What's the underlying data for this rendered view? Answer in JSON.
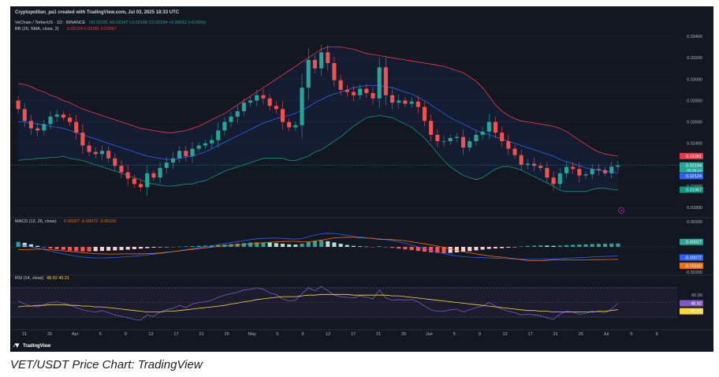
{
  "header": {
    "created_by": "Cryptopolitan_pa1 created with TradingView.com, Jul 03, 2025 18:33 UTC",
    "symbol": "VeChain / TetherUS · 1D · BINANCE",
    "ohlc": "O0.02181 H0.02247 L0.02168 C0.02194 +0.00012 (+0.55%)",
    "bb_label": "BB (20, SMA, close, 2)",
    "bb_values": "0.02124  0.02281  0.01967",
    "macd_label": "MACD (12, 26, close)",
    "macd_values": "0.00027  -0.00072  -0.00100",
    "rsi_label": "RSI (14, close)",
    "rsi_values": "48.92  40.21"
  },
  "logo_text": "TradingView",
  "caption": "VET/USDT Price Chart: TradingView",
  "colors": {
    "background": "#131722",
    "up": "#26a69a",
    "down": "#ef5350",
    "bb_upper": "#f23645",
    "bb_basis": "#2962ff",
    "bb_lower": "#089981",
    "macd_line": "#2962ff",
    "signal_line": "#ff6d00",
    "rsi_line": "#7e57c2",
    "rsi_ma": "#fdd835"
  },
  "price_axis": {
    "ticks": [
      "0.03400",
      "0.03200",
      "0.03000",
      "0.02800",
      "0.02600",
      "0.02400",
      "0.02000",
      "0.01800"
    ],
    "tags": {
      "bb_upper": "0.02281",
      "last_price": "0.02194",
      "countdown": "05:26:14",
      "bb_basis": "0.02124",
      "bb_lower": "0.01967"
    }
  },
  "macd_axis": {
    "ticks": [
      "0.00200",
      "-0.00200"
    ],
    "tags": [
      "0.00027",
      "-0.00072",
      "-0.00100"
    ]
  },
  "rsi_axis": {
    "ticks": [
      "60.00"
    ],
    "tags": [
      "48.92",
      "40.21"
    ]
  },
  "chart_data": {
    "type": "candlestick",
    "symbol": "VeChain / TetherUS",
    "timeframe": "1D",
    "exchange": "BINANCE",
    "yrange": [
      0.0172,
      0.0343
    ],
    "x_tick_labels": [
      "21",
      "25",
      "Apr",
      "5",
      "9",
      "13",
      "17",
      "21",
      "25",
      "May",
      "5",
      "9",
      "13",
      "17",
      "21",
      "25",
      "Jun",
      "5",
      "9",
      "13",
      "17",
      "21",
      "25",
      "Jul",
      "5",
      "9"
    ],
    "last_ohlc": {
      "open": 0.02181,
      "high": 0.02247,
      "low": 0.02168,
      "close": 0.02194,
      "change": 0.00012,
      "change_pct": 0.55
    },
    "closes": [
      0.0272,
      0.0261,
      0.0254,
      0.0252,
      0.0258,
      0.0265,
      0.0267,
      0.0264,
      0.026,
      0.025,
      0.0238,
      0.0232,
      0.023,
      0.0233,
      0.0226,
      0.0219,
      0.0213,
      0.0207,
      0.0202,
      0.0199,
      0.0212,
      0.0208,
      0.0217,
      0.0222,
      0.0226,
      0.0233,
      0.0228,
      0.0235,
      0.0238,
      0.024,
      0.0243,
      0.0252,
      0.026,
      0.0265,
      0.027,
      0.0278,
      0.028,
      0.0285,
      0.0282,
      0.0275,
      0.0272,
      0.026,
      0.0255,
      0.0257,
      0.0292,
      0.0318,
      0.031,
      0.0325,
      0.0315,
      0.0299,
      0.029,
      0.0288,
      0.0285,
      0.0291,
      0.0287,
      0.0282,
      0.0311,
      0.0285,
      0.0278,
      0.028,
      0.0277,
      0.0279,
      0.0274,
      0.0261,
      0.0248,
      0.0242,
      0.0242,
      0.0245,
      0.0246,
      0.0236,
      0.0242,
      0.0248,
      0.0251,
      0.026,
      0.025,
      0.0242,
      0.0235,
      0.0229,
      0.022,
      0.0221,
      0.0219,
      0.0217,
      0.0208,
      0.0202,
      0.0212,
      0.0218,
      0.0216,
      0.021,
      0.0211,
      0.0216,
      0.0215,
      0.0212,
      0.02182,
      0.02194
    ],
    "opens": [
      0.028,
      0.0272,
      0.0261,
      0.0254,
      0.0252,
      0.0258,
      0.0265,
      0.0267,
      0.0264,
      0.026,
      0.025,
      0.0238,
      0.0232,
      0.023,
      0.0233,
      0.0226,
      0.0219,
      0.0213,
      0.0207,
      0.0202,
      0.0199,
      0.0212,
      0.0208,
      0.0217,
      0.0222,
      0.0226,
      0.0233,
      0.0228,
      0.0235,
      0.0238,
      0.024,
      0.0243,
      0.0252,
      0.026,
      0.0265,
      0.027,
      0.0278,
      0.028,
      0.0285,
      0.0282,
      0.0275,
      0.0272,
      0.026,
      0.0255,
      0.0257,
      0.0292,
      0.0318,
      0.031,
      0.0325,
      0.0315,
      0.0299,
      0.029,
      0.0288,
      0.0285,
      0.0291,
      0.0287,
      0.0282,
      0.0311,
      0.0285,
      0.0278,
      0.028,
      0.0277,
      0.0279,
      0.0274,
      0.0261,
      0.0248,
      0.0242,
      0.0242,
      0.0245,
      0.0246,
      0.0236,
      0.0242,
      0.0248,
      0.0251,
      0.026,
      0.025,
      0.0242,
      0.0235,
      0.0229,
      0.022,
      0.0221,
      0.0219,
      0.0217,
      0.0208,
      0.0202,
      0.0212,
      0.0218,
      0.0216,
      0.021,
      0.0211,
      0.0216,
      0.0215,
      0.0212,
      0.02181
    ],
    "bb_upper": [
      0.0296,
      0.0295,
      0.0293,
      0.029,
      0.0288,
      0.0285,
      0.0283,
      0.028,
      0.0278,
      0.0275,
      0.0272,
      0.027,
      0.0268,
      0.0266,
      0.0264,
      0.0262,
      0.026,
      0.0258,
      0.0256,
      0.0254,
      0.0253,
      0.0252,
      0.0251,
      0.025,
      0.025,
      0.0251,
      0.0252,
      0.0254,
      0.0256,
      0.0259,
      0.0262,
      0.0265,
      0.0268,
      0.0272,
      0.0276,
      0.028,
      0.0284,
      0.0288,
      0.0292,
      0.0296,
      0.03,
      0.0304,
      0.0308,
      0.0312,
      0.0316,
      0.032,
      0.0324,
      0.0328,
      0.033,
      0.033,
      0.033,
      0.0329,
      0.0328,
      0.0326,
      0.0324,
      0.0323,
      0.0322,
      0.0321,
      0.032,
      0.0319,
      0.0318,
      0.0317,
      0.0316,
      0.0315,
      0.0314,
      0.0313,
      0.0312,
      0.031,
      0.0308,
      0.0306,
      0.0302,
      0.0298,
      0.0292,
      0.0284,
      0.0276,
      0.027,
      0.0266,
      0.0263,
      0.0261,
      0.026,
      0.0259,
      0.0258,
      0.0257,
      0.0256,
      0.0254,
      0.0251,
      0.0247,
      0.0243,
      0.0239,
      0.0235,
      0.0232,
      0.023,
      0.0229,
      0.02281
    ],
    "bb_basis": [
      0.026,
      0.026,
      0.0259,
      0.0258,
      0.0257,
      0.0256,
      0.0255,
      0.0254,
      0.0252,
      0.025,
      0.0248,
      0.0246,
      0.0244,
      0.0242,
      0.024,
      0.0238,
      0.0236,
      0.0234,
      0.0232,
      0.023,
      0.0228,
      0.0227,
      0.0226,
      0.0225,
      0.0225,
      0.0226,
      0.0227,
      0.0228,
      0.023,
      0.0232,
      0.0235,
      0.0238,
      0.0241,
      0.0244,
      0.0247,
      0.025,
      0.0253,
      0.0256,
      0.0259,
      0.0261,
      0.0263,
      0.0265,
      0.0266,
      0.0268,
      0.0271,
      0.0274,
      0.0278,
      0.0281,
      0.0284,
      0.0286,
      0.0288,
      0.029,
      0.0292,
      0.0293,
      0.0294,
      0.0294,
      0.0294,
      0.0293,
      0.0292,
      0.029,
      0.0288,
      0.0286,
      0.0283,
      0.028,
      0.0276,
      0.0272,
      0.0268,
      0.0264,
      0.0261,
      0.0258,
      0.0255,
      0.0252,
      0.025,
      0.0248,
      0.0246,
      0.0244,
      0.0242,
      0.024,
      0.0238,
      0.0236,
      0.0234,
      0.0232,
      0.023,
      0.0228,
      0.0225,
      0.0223,
      0.0221,
      0.0219,
      0.0217,
      0.0216,
      0.0215,
      0.0214,
      0.0213,
      0.02124
    ],
    "bb_lower": [
      0.0224,
      0.0225,
      0.0225,
      0.0226,
      0.0226,
      0.0227,
      0.0227,
      0.0228,
      0.0226,
      0.0225,
      0.0224,
      0.0222,
      0.022,
      0.0218,
      0.0216,
      0.0214,
      0.0212,
      0.021,
      0.0208,
      0.0206,
      0.0203,
      0.0202,
      0.0201,
      0.02,
      0.02,
      0.0201,
      0.0202,
      0.0202,
      0.0204,
      0.0205,
      0.0208,
      0.0211,
      0.0214,
      0.0216,
      0.0218,
      0.022,
      0.0222,
      0.0224,
      0.0226,
      0.0226,
      0.0226,
      0.0226,
      0.0224,
      0.0224,
      0.0226,
      0.0228,
      0.0232,
      0.0234,
      0.0238,
      0.0242,
      0.0246,
      0.0251,
      0.0256,
      0.026,
      0.0264,
      0.0265,
      0.0266,
      0.0265,
      0.0264,
      0.0261,
      0.0258,
      0.0255,
      0.025,
      0.0245,
      0.0238,
      0.0231,
      0.0224,
      0.0218,
      0.0214,
      0.021,
      0.0208,
      0.0206,
      0.0208,
      0.0212,
      0.0216,
      0.0218,
      0.0218,
      0.0217,
      0.0215,
      0.0212,
      0.0209,
      0.0206,
      0.0203,
      0.02,
      0.0196,
      0.0195,
      0.0195,
      0.0195,
      0.0195,
      0.0197,
      0.0198,
      0.0198,
      0.0197,
      0.01967
    ],
    "macd_hist": [
      0.0004,
      0.00032,
      0.0002,
      8e-05,
      -4e-05,
      -0.00012,
      -0.00018,
      -0.00024,
      -0.0003,
      -0.00034,
      -0.00036,
      -0.00036,
      -0.00034,
      -0.00032,
      -0.0003,
      -0.00028,
      -0.00026,
      -0.00022,
      -0.00018,
      -0.00014,
      -0.0001,
      -6e-05,
      -4e-05,
      -2e-05,
      0.0,
      2e-05,
      4e-05,
      6e-05,
      8e-05,
      0.0001,
      0.00012,
      0.00015,
      0.00018,
      0.00022,
      0.00026,
      0.0003,
      0.00034,
      0.00036,
      0.00036,
      0.00034,
      0.0003,
      0.00025,
      0.0002,
      0.00018,
      0.00025,
      0.0004,
      0.00048,
      0.0005,
      0.00045,
      0.00035,
      0.00025,
      0.00015,
      8e-05,
      5e-05,
      2e-05,
      -2e-05,
      5e-05,
      -2e-05,
      -8e-05,
      -0.00014,
      -0.0002,
      -0.00026,
      -0.00032,
      -0.00038,
      -0.00044,
      -0.00048,
      -0.0005,
      -0.00048,
      -0.00044,
      -0.0004,
      -0.00034,
      -0.00028,
      -0.00022,
      -0.00016,
      -0.00012,
      -0.0001,
      -6e-05,
      -2e-05,
      4e-05,
      8e-05,
      0.0001,
      0.00012,
      0.0001,
      8e-05,
      0.0001,
      0.00014,
      0.00016,
      0.00018,
      0.0002,
      0.00022,
      0.00024,
      0.00025,
      0.00026,
      0.00027
    ],
    "macd_line": [
      0.0002,
      0.0001,
      0.0,
      -0.0001,
      -0.00022,
      -0.00034,
      -0.00045,
      -0.00056,
      -0.00066,
      -0.00075,
      -0.00082,
      -0.00086,
      -0.00088,
      -0.00088,
      -0.00087,
      -0.00085,
      -0.00082,
      -0.00078,
      -0.00074,
      -0.00069,
      -0.00064,
      -0.00058,
      -0.00052,
      -0.00045,
      -0.00038,
      -0.0003,
      -0.00022,
      -0.00014,
      -6e-05,
      2e-05,
      0.0001,
      0.00018,
      0.00026,
      0.00034,
      0.00042,
      0.0005,
      0.00058,
      0.00064,
      0.00068,
      0.0007,
      0.0007,
      0.00068,
      0.00064,
      0.00062,
      0.00066,
      0.0008,
      0.00094,
      0.00104,
      0.00108,
      0.00106,
      0.001,
      0.00092,
      0.00084,
      0.00078,
      0.00072,
      0.00066,
      0.00064,
      0.00058,
      0.0005,
      0.0004,
      0.00028,
      0.00014,
      0.0,
      -0.00014,
      -0.00028,
      -0.00042,
      -0.00054,
      -0.00064,
      -0.00072,
      -0.00078,
      -0.00082,
      -0.00084,
      -0.00086,
      -0.00088,
      -0.0009,
      -0.00092,
      -0.00094,
      -0.00096,
      -0.00098,
      -0.001,
      -0.001,
      -0.00098,
      -0.00098,
      -0.00096,
      -0.00094,
      -0.0009,
      -0.00088,
      -0.00086,
      -0.00084,
      -0.0008,
      -0.00078,
      -0.00076,
      -0.00074,
      -0.00072
    ],
    "signal_line": [
      -0.0002,
      -0.00022,
      -0.0002,
      -0.00018,
      -0.00018,
      -0.00022,
      -0.00027,
      -0.00032,
      -0.00036,
      -0.00041,
      -0.00046,
      -0.0005,
      -0.00054,
      -0.00056,
      -0.00057,
      -0.00057,
      -0.00056,
      -0.00056,
      -0.00056,
      -0.00055,
      -0.00054,
      -0.00052,
      -0.00048,
      -0.00043,
      -0.00038,
      -0.00032,
      -0.00026,
      -0.0002,
      -0.00014,
      -8e-05,
      -2e-05,
      3e-05,
      8e-05,
      0.00012,
      0.00016,
      0.0002,
      0.00024,
      0.00028,
      0.00032,
      0.00036,
      0.0004,
      0.00043,
      0.00044,
      0.00044,
      0.00041,
      0.0004,
      0.00046,
      0.00054,
      0.00063,
      0.00071,
      0.00075,
      0.00077,
      0.00076,
      0.00073,
      0.0007,
      0.00068,
      0.00059,
      0.0006,
      0.00058,
      0.00054,
      0.00048,
      0.0004,
      0.00032,
      0.00024,
      0.00016,
      6e-05,
      -4e-05,
      -0.00016,
      -0.00028,
      -0.00038,
      -0.00048,
      -0.00056,
      -0.00064,
      -0.00072,
      -0.00078,
      -0.00082,
      -0.00088,
      -0.00094,
      -0.00102,
      -0.00108,
      -0.0011,
      -0.0011,
      -0.00108,
      -0.00104,
      -0.00104,
      -0.00104,
      -0.00104,
      -0.00104,
      -0.00104,
      -0.00102,
      -0.00102,
      -0.00101,
      -0.001,
      -0.001
    ],
    "rsi": [
      52,
      48,
      45,
      44,
      47,
      50,
      51,
      49,
      47,
      43,
      40,
      38,
      37,
      39,
      36,
      33,
      31,
      29,
      27,
      26,
      33,
      31,
      37,
      40,
      42,
      46,
      43,
      48,
      50,
      51,
      53,
      57,
      60,
      62,
      64,
      67,
      68,
      70,
      68,
      63,
      61,
      55,
      52,
      53,
      62,
      70,
      66,
      72,
      66,
      60,
      58,
      57,
      56,
      59,
      57,
      55,
      67,
      56,
      53,
      54,
      53,
      54,
      51,
      45,
      40,
      38,
      38,
      40,
      41,
      37,
      40,
      43,
      45,
      50,
      45,
      41,
      38,
      36,
      33,
      34,
      33,
      32,
      29,
      27,
      34,
      38,
      37,
      34,
      35,
      38,
      37,
      36,
      41,
      48.92
    ],
    "rsi_ma": [
      44,
      45,
      45,
      46,
      46,
      47,
      47,
      47,
      46,
      46,
      45,
      45,
      44,
      44,
      43,
      42,
      41,
      40,
      39,
      38,
      37,
      37,
      37,
      38,
      38,
      39,
      40,
      41,
      42,
      43,
      44,
      45,
      46,
      48,
      49,
      51,
      52,
      54,
      55,
      56,
      57,
      58,
      58,
      58,
      59,
      60,
      60,
      61,
      61,
      61,
      61,
      61,
      60,
      60,
      60,
      60,
      60,
      60,
      59,
      59,
      58,
      57,
      56,
      55,
      54,
      53,
      52,
      51,
      50,
      49,
      48,
      47,
      46,
      45,
      44,
      43,
      42,
      41,
      40,
      39,
      39,
      38,
      38,
      37,
      37,
      37,
      37,
      37,
      37,
      37,
      38,
      38,
      39,
      40.21
    ],
    "rsi_bands": {
      "upper": 70,
      "lower": 30,
      "shown_tick": 60
    }
  }
}
